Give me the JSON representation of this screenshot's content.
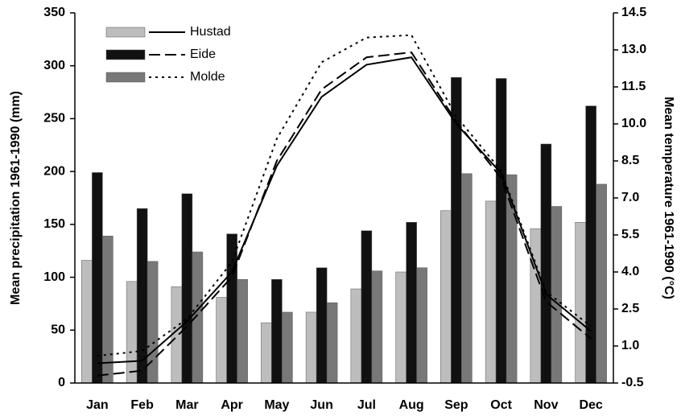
{
  "chart_data": {
    "type": "bar-line",
    "categories": [
      "Jan",
      "Feb",
      "Mar",
      "Apr",
      "May",
      "Jun",
      "Jul",
      "Aug",
      "Sep",
      "Oct",
      "Nov",
      "Dec"
    ],
    "ylabel": "Mean precipitation 1961-1990 (mm)",
    "y2label": "Mean temperature 1961-1990 (°C)",
    "ylim": [
      0,
      350
    ],
    "yticks": [
      0,
      50,
      100,
      150,
      200,
      250,
      300,
      350
    ],
    "y2lim": [
      -0.5,
      14.5
    ],
    "y2ticks": [
      -0.5,
      {
        "value": 1.0,
        "label": "1.0"
      },
      2.5,
      {
        "value": 4.0,
        "label": "4.0"
      },
      5.5,
      {
        "value": 7.0,
        "label": "7.0"
      },
      8.5,
      {
        "value": 10.0,
        "label": "10.0"
      },
      11.5,
      {
        "value": 13.0,
        "label": "13.0"
      },
      14.5
    ],
    "series": [
      {
        "name": "Hustad",
        "color": "#bdbdbd",
        "line_style": "solid",
        "values": [
          116,
          96,
          91,
          81,
          57,
          67,
          89,
          105,
          163,
          172,
          146,
          152
        ],
        "temperature": [
          0.3,
          0.4,
          2.0,
          4.0,
          8.3,
          11.1,
          12.4,
          12.7,
          10.0,
          8.0,
          3.1,
          1.6
        ]
      },
      {
        "name": "Eide",
        "color": "#111111",
        "line_style": "dashed",
        "values": [
          199,
          165,
          179,
          141,
          98,
          109,
          144,
          152,
          289,
          288,
          226,
          262
        ],
        "temperature": [
          -0.2,
          0.0,
          1.8,
          3.8,
          8.5,
          11.4,
          12.7,
          12.9,
          10.1,
          7.8,
          2.8,
          1.3
        ]
      },
      {
        "name": "Molde",
        "color": "#787878",
        "line_style": "dotted",
        "values": [
          139,
          115,
          124,
          98,
          67,
          76,
          106,
          109,
          198,
          197,
          167,
          188
        ],
        "temperature": [
          0.6,
          0.8,
          2.1,
          4.4,
          9.4,
          12.5,
          13.5,
          13.6,
          10.3,
          8.1,
          3.2,
          1.8
        ]
      }
    ]
  }
}
